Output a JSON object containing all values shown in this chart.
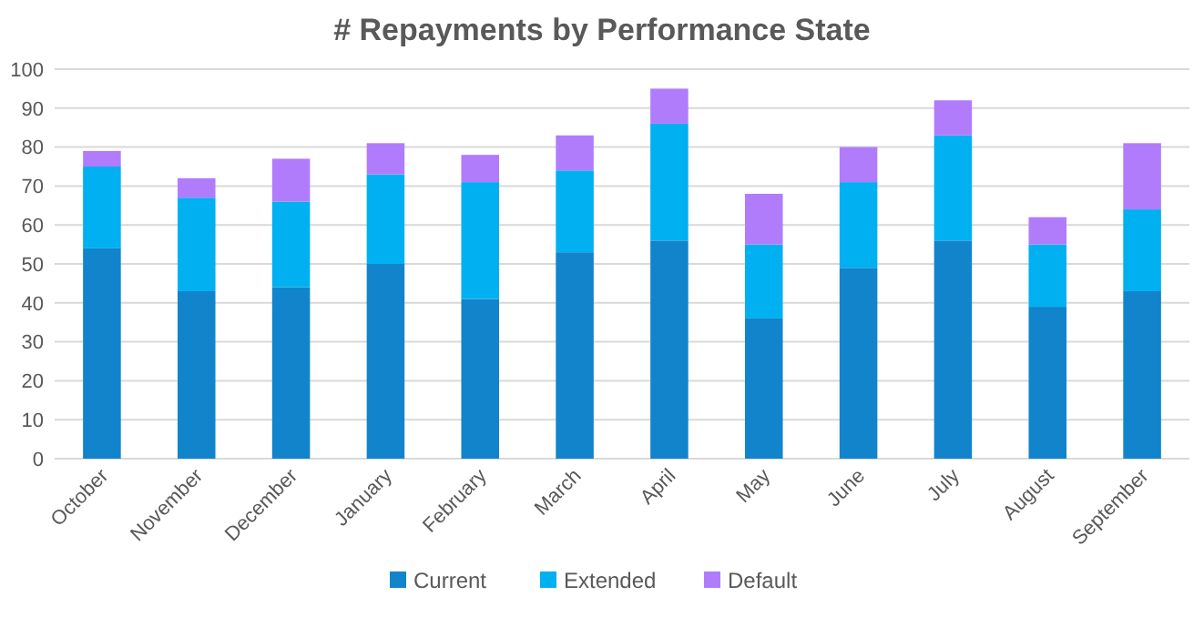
{
  "chart_data": {
    "type": "bar",
    "title": "# Repayments by Performance State",
    "stacked": true,
    "categories": [
      "October",
      "November",
      "December",
      "January",
      "February",
      "March",
      "April",
      "May",
      "June",
      "July",
      "August",
      "September"
    ],
    "series": [
      {
        "name": "Current",
        "color": "#1184cb",
        "values": [
          54,
          43,
          44,
          50,
          41,
          53,
          56,
          36,
          49,
          56,
          39,
          43
        ]
      },
      {
        "name": "Extended",
        "color": "#00b0f0",
        "values": [
          21,
          24,
          22,
          23,
          30,
          21,
          30,
          19,
          22,
          27,
          16,
          21
        ]
      },
      {
        "name": "Default",
        "color": "#b07cfc",
        "values": [
          4,
          5,
          11,
          8,
          7,
          9,
          9,
          13,
          9,
          9,
          7,
          17
        ]
      }
    ],
    "ylim": [
      0,
      100
    ],
    "yticks": [
      0,
      10,
      20,
      30,
      40,
      50,
      60,
      70,
      80,
      90,
      100
    ],
    "grid": "y",
    "legend": "bottom"
  }
}
